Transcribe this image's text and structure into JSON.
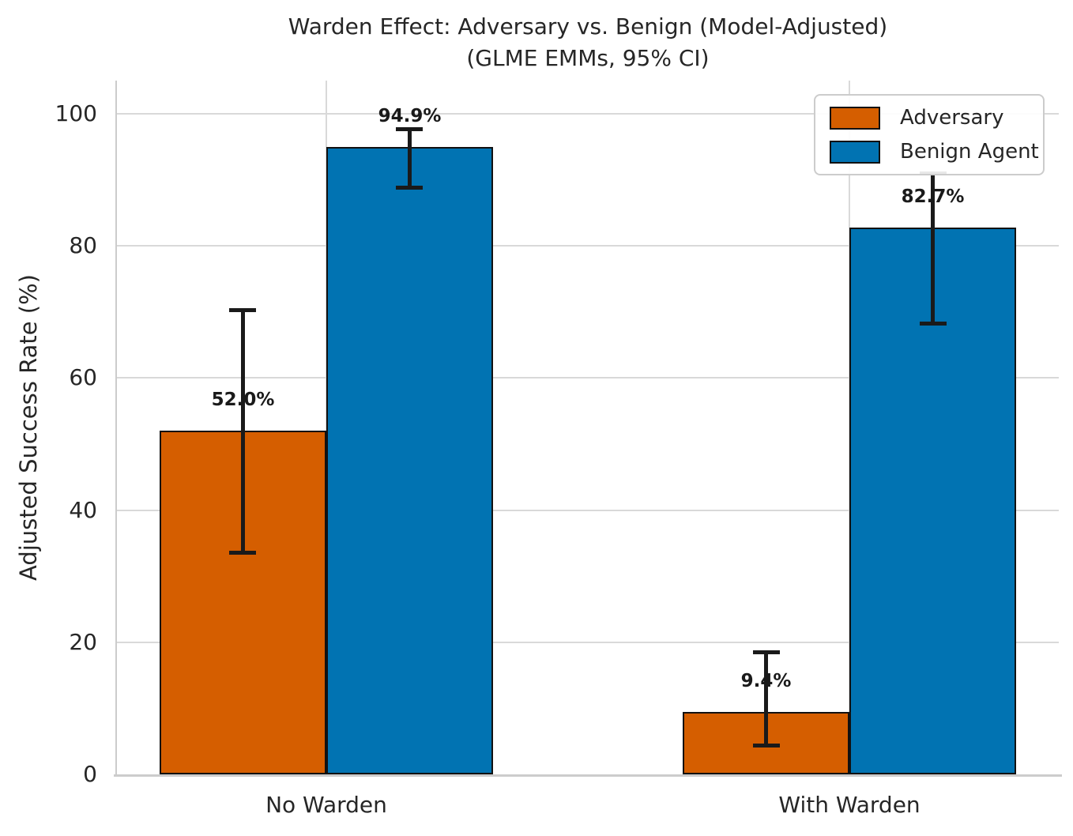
{
  "figure": {
    "title_line1": "Warden Effect: Adversary vs. Benign (Model-Adjusted)",
    "title_line2": "(GLME EMMs, 95% CI)"
  },
  "chart_data": {
    "type": "bar",
    "title": "Warden Effect: Adversary vs. Benign (Model-Adjusted) (GLME EMMs, 95% CI)",
    "categories": [
      "No Warden",
      "With Warden"
    ],
    "series": [
      {
        "name": "Adversary",
        "color": "#D55E00",
        "values": [
          52.0,
          9.4
        ],
        "value_labels": [
          "52.0%",
          "9.4%"
        ],
        "ci_low": [
          33.5,
          4.4
        ],
        "ci_high": [
          70.2,
          18.5
        ]
      },
      {
        "name": "Benign Agent",
        "color": "#0173B2",
        "values": [
          94.9,
          82.7
        ],
        "value_labels": [
          "94.9%",
          "82.7%"
        ],
        "ci_low": [
          88.8,
          68.2
        ],
        "ci_high": [
          97.6,
          90.9
        ]
      }
    ],
    "xlabel": "",
    "ylabel": "Adjusted Success Rate (%)",
    "yticks": [
      0,
      20,
      40,
      60,
      80,
      100
    ],
    "ylim": [
      0,
      105
    ],
    "grid": true,
    "legend_position": "upper right",
    "error_bar_meaning": "95% CI"
  },
  "colors": {
    "adversary": "#D55E00",
    "benign_agent": "#0173B2",
    "text": "#262626",
    "gridline": "#d9d9d9",
    "spine": "#cccccc",
    "error_bar": "#1a1a1a",
    "background": "#ffffff"
  }
}
